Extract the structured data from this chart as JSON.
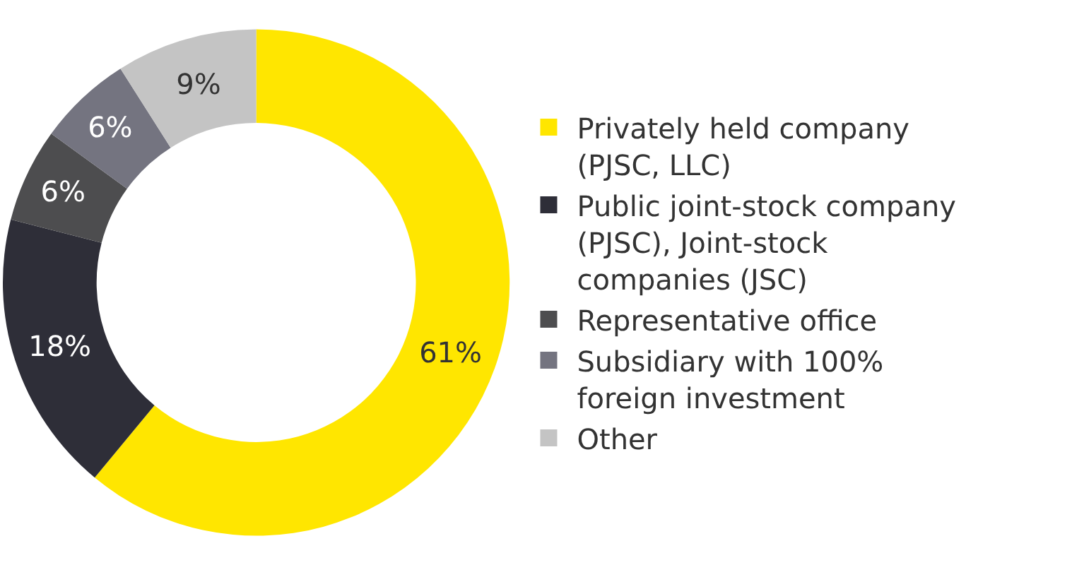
{
  "chart_data": {
    "type": "donut",
    "categories": [
      "Privately held company (PJSC, LLC)",
      "Public joint-stock company (PJSC), Joint-stock companies (JSC)",
      "Representative office",
      "Subsidiary with 100% foreign investment",
      "Other"
    ],
    "values": [
      61,
      18,
      6,
      6,
      9
    ],
    "value_labels": [
      "61%",
      "18%",
      "6%",
      "6%",
      "9%"
    ],
    "colors": [
      "#ffe600",
      "#2e2e38",
      "#4d4d4f",
      "#747480",
      "#c4c4c4"
    ],
    "legend": "right"
  }
}
